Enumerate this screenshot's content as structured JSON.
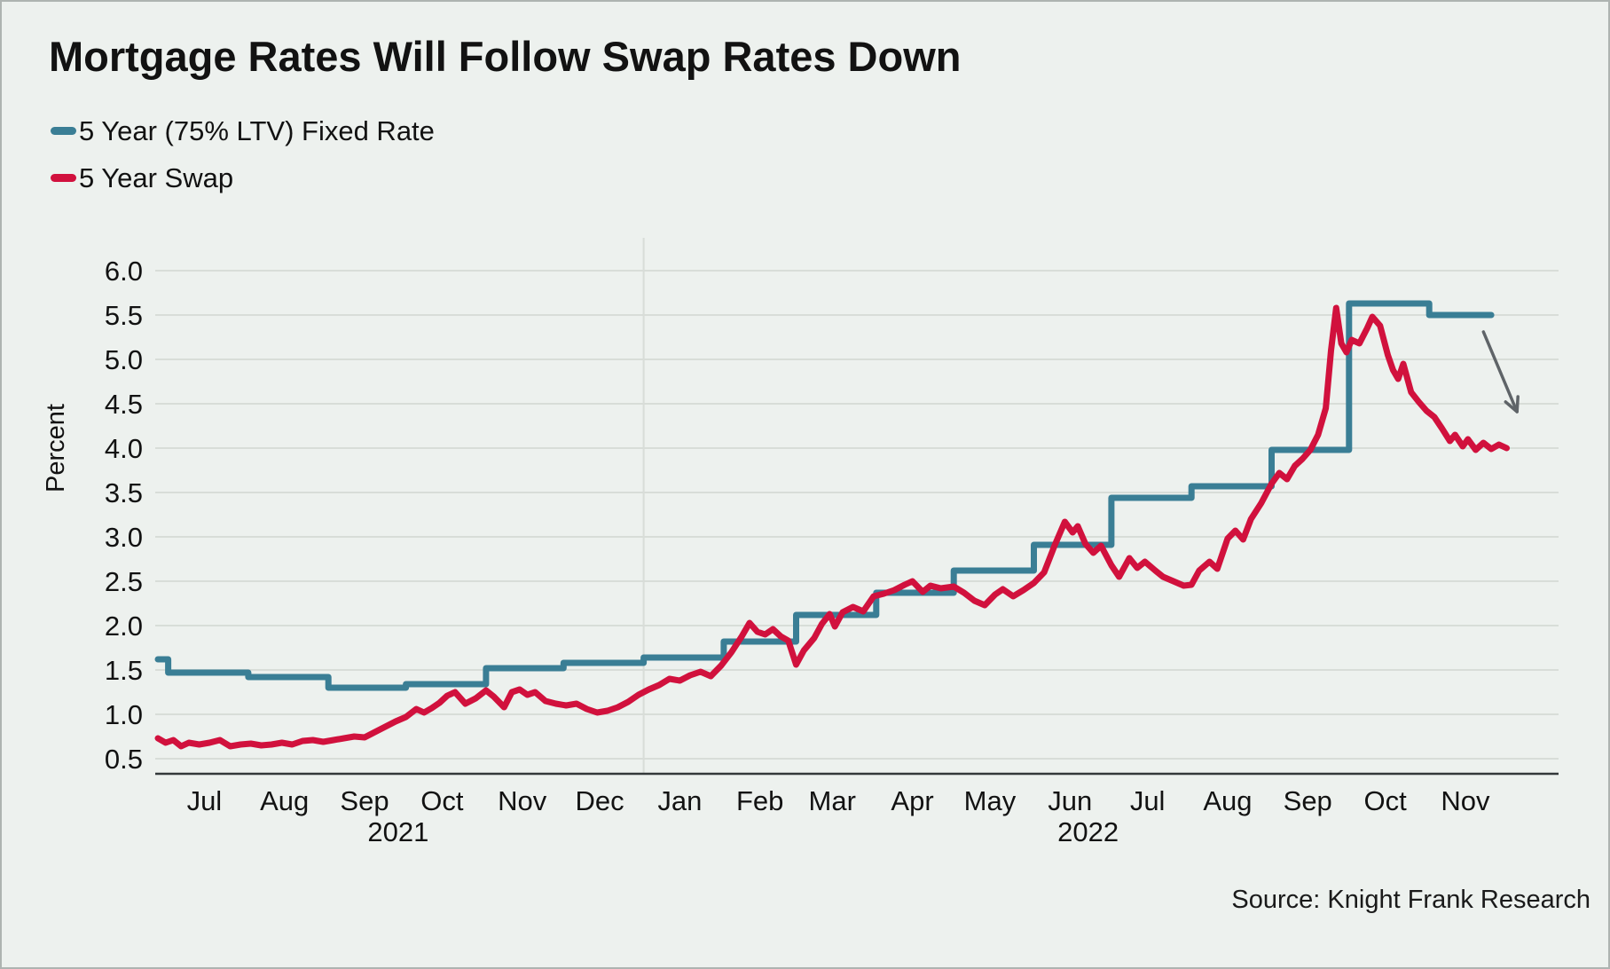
{
  "page": {
    "background": "#edf1ee",
    "frame_border_color": "#aeb4b1"
  },
  "header": {
    "title": "Mortgage Rates Will Follow Swap Rates Down"
  },
  "legend": {
    "items": [
      {
        "label": "5 Year (75% LTV) Fixed Rate",
        "color": "#3a7e95"
      },
      {
        "label": "5 Year Swap",
        "color": "#d1113d"
      }
    ]
  },
  "source_note": "Source: Knight Frank Research",
  "chart_data": {
    "type": "line",
    "title": "Mortgage Rates Will Follow Swap Rates Down",
    "xlabel": "",
    "ylabel": "Percent",
    "ylim": [
      0.33,
      6.5
    ],
    "yticks": [
      0.5,
      1.0,
      1.5,
      2.0,
      2.5,
      3.0,
      3.5,
      4.0,
      4.5,
      5.0,
      5.5,
      6.0
    ],
    "grid": "horizontal",
    "grid_color": "#d8ddd8",
    "axis_line_color": "#33383a",
    "year_divider_date": "2022-01-01",
    "x_ticks": [
      {
        "label": "Jul",
        "date": "2021-07-15"
      },
      {
        "label": "Aug",
        "date": "2021-08-15"
      },
      {
        "label": "Sep",
        "date": "2021-09-15"
      },
      {
        "label": "Oct",
        "date": "2021-10-15"
      },
      {
        "label": "Nov",
        "date": "2021-11-15"
      },
      {
        "label": "Dec",
        "date": "2021-12-15"
      },
      {
        "label": "Jan",
        "date": "2022-01-15"
      },
      {
        "label": "Feb",
        "date": "2022-02-15"
      },
      {
        "label": "Mar",
        "date": "2022-03-15"
      },
      {
        "label": "Apr",
        "date": "2022-04-15"
      },
      {
        "label": "May",
        "date": "2022-05-15"
      },
      {
        "label": "Jun",
        "date": "2022-06-15"
      },
      {
        "label": "Jul",
        "date": "2022-07-15"
      },
      {
        "label": "Aug",
        "date": "2022-08-15"
      },
      {
        "label": "Sep",
        "date": "2022-09-15"
      },
      {
        "label": "Oct",
        "date": "2022-10-15"
      },
      {
        "label": "Nov",
        "date": "2022-11-15"
      }
    ],
    "year_labels": [
      {
        "label": "2021",
        "anchor_date": "2021-09-28"
      },
      {
        "label": "2022",
        "anchor_date": "2022-06-22"
      }
    ],
    "series": [
      {
        "name": "5 Year (75% LTV) Fixed Rate",
        "color": "#3a7e95",
        "style": "step",
        "stroke_width": 7,
        "points_format": [
          "date",
          "percent"
        ],
        "points": [
          [
            "2021-06-27",
            1.62
          ],
          [
            "2021-07-01",
            1.47
          ],
          [
            "2021-08-01",
            1.42
          ],
          [
            "2021-09-01",
            1.3
          ],
          [
            "2021-10-01",
            1.34
          ],
          [
            "2021-11-01",
            1.52
          ],
          [
            "2021-12-01",
            1.58
          ],
          [
            "2022-01-01",
            1.64
          ],
          [
            "2022-02-01",
            1.82
          ],
          [
            "2022-03-01",
            2.12
          ],
          [
            "2022-04-01",
            2.37
          ],
          [
            "2022-05-01",
            2.62
          ],
          [
            "2022-06-01",
            2.91
          ],
          [
            "2022-07-01",
            3.44
          ],
          [
            "2022-08-01",
            3.57
          ],
          [
            "2022-09-01",
            3.98
          ],
          [
            "2022-10-01",
            5.63
          ],
          [
            "2022-11-01",
            5.5
          ],
          [
            "2022-11-25",
            5.5
          ]
        ]
      },
      {
        "name": "5 Year Swap",
        "color": "#d1113d",
        "style": "line",
        "stroke_width": 7,
        "points_format": [
          "date",
          "percent"
        ],
        "points": [
          [
            "2021-06-27",
            0.73
          ],
          [
            "2021-06-30",
            0.68
          ],
          [
            "2021-07-03",
            0.71
          ],
          [
            "2021-07-06",
            0.64
          ],
          [
            "2021-07-09",
            0.68
          ],
          [
            "2021-07-13",
            0.66
          ],
          [
            "2021-07-17",
            0.68
          ],
          [
            "2021-07-21",
            0.71
          ],
          [
            "2021-07-25",
            0.64
          ],
          [
            "2021-07-29",
            0.66
          ],
          [
            "2021-08-02",
            0.67
          ],
          [
            "2021-08-06",
            0.65
          ],
          [
            "2021-08-10",
            0.66
          ],
          [
            "2021-08-14",
            0.68
          ],
          [
            "2021-08-18",
            0.66
          ],
          [
            "2021-08-22",
            0.7
          ],
          [
            "2021-08-26",
            0.71
          ],
          [
            "2021-08-30",
            0.69
          ],
          [
            "2021-09-03",
            0.71
          ],
          [
            "2021-09-07",
            0.73
          ],
          [
            "2021-09-11",
            0.75
          ],
          [
            "2021-09-15",
            0.74
          ],
          [
            "2021-09-19",
            0.8
          ],
          [
            "2021-09-23",
            0.86
          ],
          [
            "2021-09-27",
            0.92
          ],
          [
            "2021-10-01",
            0.97
          ],
          [
            "2021-10-05",
            1.06
          ],
          [
            "2021-10-08",
            1.02
          ],
          [
            "2021-10-11",
            1.07
          ],
          [
            "2021-10-14",
            1.13
          ],
          [
            "2021-10-17",
            1.21
          ],
          [
            "2021-10-20",
            1.25
          ],
          [
            "2021-10-24",
            1.12
          ],
          [
            "2021-10-28",
            1.18
          ],
          [
            "2021-11-01",
            1.27
          ],
          [
            "2021-11-04",
            1.2
          ],
          [
            "2021-11-08",
            1.08
          ],
          [
            "2021-11-11",
            1.25
          ],
          [
            "2021-11-14",
            1.28
          ],
          [
            "2021-11-17",
            1.22
          ],
          [
            "2021-11-20",
            1.25
          ],
          [
            "2021-11-24",
            1.15
          ],
          [
            "2021-11-28",
            1.12
          ],
          [
            "2021-12-02",
            1.1
          ],
          [
            "2021-12-06",
            1.12
          ],
          [
            "2021-12-10",
            1.06
          ],
          [
            "2021-12-14",
            1.02
          ],
          [
            "2021-12-18",
            1.04
          ],
          [
            "2021-12-22",
            1.08
          ],
          [
            "2021-12-26",
            1.14
          ],
          [
            "2021-12-30",
            1.22
          ],
          [
            "2022-01-03",
            1.28
          ],
          [
            "2022-01-07",
            1.33
          ],
          [
            "2022-01-11",
            1.4
          ],
          [
            "2022-01-15",
            1.38
          ],
          [
            "2022-01-19",
            1.44
          ],
          [
            "2022-01-23",
            1.48
          ],
          [
            "2022-01-27",
            1.43
          ],
          [
            "2022-01-31",
            1.55
          ],
          [
            "2022-02-04",
            1.7
          ],
          [
            "2022-02-08",
            1.88
          ],
          [
            "2022-02-11",
            2.03
          ],
          [
            "2022-02-14",
            1.93
          ],
          [
            "2022-02-17",
            1.9
          ],
          [
            "2022-02-20",
            1.96
          ],
          [
            "2022-02-23",
            1.88
          ],
          [
            "2022-02-26",
            1.83
          ],
          [
            "2022-03-01",
            1.56
          ],
          [
            "2022-03-04",
            1.72
          ],
          [
            "2022-03-08",
            1.86
          ],
          [
            "2022-03-11",
            2.02
          ],
          [
            "2022-03-14",
            2.13
          ],
          [
            "2022-03-16",
            1.99
          ],
          [
            "2022-03-19",
            2.15
          ],
          [
            "2022-03-23",
            2.21
          ],
          [
            "2022-03-27",
            2.16
          ],
          [
            "2022-03-31",
            2.33
          ],
          [
            "2022-04-04",
            2.36
          ],
          [
            "2022-04-08",
            2.4
          ],
          [
            "2022-04-12",
            2.46
          ],
          [
            "2022-04-15",
            2.5
          ],
          [
            "2022-04-19",
            2.38
          ],
          [
            "2022-04-22",
            2.45
          ],
          [
            "2022-04-26",
            2.42
          ],
          [
            "2022-05-01",
            2.44
          ],
          [
            "2022-05-05",
            2.37
          ],
          [
            "2022-05-09",
            2.28
          ],
          [
            "2022-05-13",
            2.23
          ],
          [
            "2022-05-17",
            2.35
          ],
          [
            "2022-05-20",
            2.41
          ],
          [
            "2022-05-24",
            2.33
          ],
          [
            "2022-05-28",
            2.4
          ],
          [
            "2022-06-01",
            2.48
          ],
          [
            "2022-06-05",
            2.6
          ],
          [
            "2022-06-09",
            2.9
          ],
          [
            "2022-06-13",
            3.17
          ],
          [
            "2022-06-16",
            3.05
          ],
          [
            "2022-06-18",
            3.12
          ],
          [
            "2022-06-21",
            2.92
          ],
          [
            "2022-06-24",
            2.82
          ],
          [
            "2022-06-27",
            2.9
          ],
          [
            "2022-07-01",
            2.68
          ],
          [
            "2022-07-04",
            2.55
          ],
          [
            "2022-07-08",
            2.76
          ],
          [
            "2022-07-11",
            2.65
          ],
          [
            "2022-07-14",
            2.72
          ],
          [
            "2022-07-18",
            2.62
          ],
          [
            "2022-07-21",
            2.55
          ],
          [
            "2022-07-25",
            2.5
          ],
          [
            "2022-07-29",
            2.45
          ],
          [
            "2022-08-01",
            2.46
          ],
          [
            "2022-08-04",
            2.62
          ],
          [
            "2022-08-08",
            2.72
          ],
          [
            "2022-08-11",
            2.64
          ],
          [
            "2022-08-15",
            2.98
          ],
          [
            "2022-08-18",
            3.07
          ],
          [
            "2022-08-21",
            2.97
          ],
          [
            "2022-08-24",
            3.2
          ],
          [
            "2022-08-28",
            3.38
          ],
          [
            "2022-09-01",
            3.6
          ],
          [
            "2022-09-04",
            3.72
          ],
          [
            "2022-09-07",
            3.65
          ],
          [
            "2022-09-10",
            3.8
          ],
          [
            "2022-09-13",
            3.88
          ],
          [
            "2022-09-16",
            3.98
          ],
          [
            "2022-09-19",
            4.15
          ],
          [
            "2022-09-22",
            4.45
          ],
          [
            "2022-09-24",
            5.1
          ],
          [
            "2022-09-26",
            5.58
          ],
          [
            "2022-09-28",
            5.18
          ],
          [
            "2022-09-30",
            5.08
          ],
          [
            "2022-10-02",
            5.22
          ],
          [
            "2022-10-05",
            5.18
          ],
          [
            "2022-10-08",
            5.35
          ],
          [
            "2022-10-10",
            5.48
          ],
          [
            "2022-10-13",
            5.38
          ],
          [
            "2022-10-16",
            5.05
          ],
          [
            "2022-10-18",
            4.88
          ],
          [
            "2022-10-20",
            4.78
          ],
          [
            "2022-10-22",
            4.95
          ],
          [
            "2022-10-25",
            4.63
          ],
          [
            "2022-10-28",
            4.52
          ],
          [
            "2022-10-31",
            4.42
          ],
          [
            "2022-11-03",
            4.35
          ],
          [
            "2022-11-06",
            4.22
          ],
          [
            "2022-11-09",
            4.08
          ],
          [
            "2022-11-11",
            4.15
          ],
          [
            "2022-11-14",
            4.02
          ],
          [
            "2022-11-16",
            4.1
          ],
          [
            "2022-11-19",
            3.98
          ],
          [
            "2022-11-22",
            4.06
          ],
          [
            "2022-11-25",
            3.99
          ],
          [
            "2022-11-28",
            4.04
          ],
          [
            "2022-12-01",
            4.0
          ]
        ]
      }
    ],
    "annotation_arrow": {
      "from": {
        "date": "2022-11-22",
        "value": 5.31
      },
      "to": {
        "date": "2022-12-05",
        "value": 4.41
      },
      "color": "#5f6468"
    }
  }
}
